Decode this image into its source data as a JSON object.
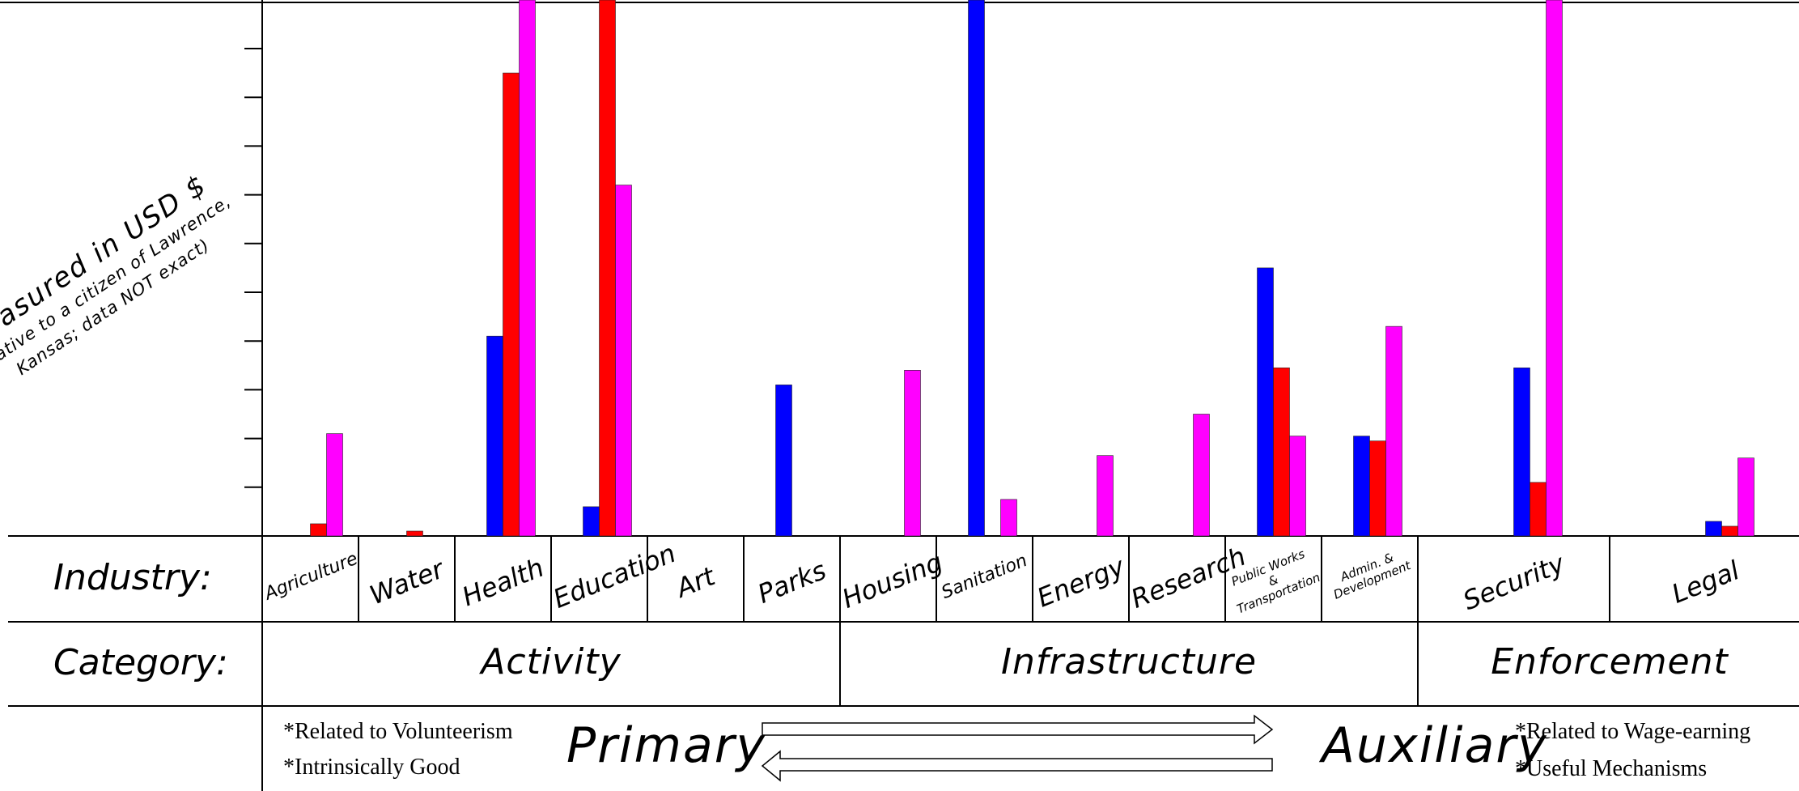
{
  "chart_data": {
    "type": "bar",
    "ylabel": "Measured in USD $",
    "ylabel_note": "(relative to a citizen of Lawrence, Kansas; data NOT exact)",
    "ylim": [
      0,
      11
    ],
    "y_ticks": 10,
    "series_colors": [
      "#0000ff",
      "#ff0000",
      "#ff00ff"
    ],
    "industry_label": "Industry:",
    "category_label": "Category:",
    "categories": [
      "Agriculture",
      "Water",
      "Health",
      "Education",
      "Art",
      "Parks",
      "Housing",
      "Sanitation",
      "Energy",
      "Research",
      "Public Works & Transportation",
      "Admin. & Development",
      "Security",
      "Legal"
    ],
    "category_groups": [
      {
        "name": "Activity",
        "span": 6
      },
      {
        "name": "Infrastructure",
        "span": 6
      },
      {
        "name": "Enforcement",
        "span": 2
      }
    ],
    "bars": [
      [
        0,
        0.25,
        2.1
      ],
      [
        0,
        0.1,
        0
      ],
      [
        4.1,
        9.5,
        11.5
      ],
      [
        0.6,
        11.5,
        7.2
      ],
      [
        0,
        0,
        0
      ],
      [
        3.1,
        0,
        0
      ],
      [
        0,
        0,
        3.4
      ],
      [
        11.5,
        0,
        0.75
      ],
      [
        0,
        0,
        1.65
      ],
      [
        0,
        0,
        2.5
      ],
      [
        5.5,
        3.45,
        2.05
      ],
      [
        2.05,
        1.95,
        4.3
      ],
      [
        3.45,
        1.1,
        11.5
      ],
      [
        0.3,
        0.2,
        1.6
      ]
    ],
    "primary_label": "Primary",
    "auxiliary_label": "Auxiliary",
    "primary_notes": [
      "*Related to Volunteerism",
      "*Intrinsically Good"
    ],
    "auxiliary_notes": [
      "*Related to Wage-earning",
      "*Useful Mechanisms"
    ]
  }
}
